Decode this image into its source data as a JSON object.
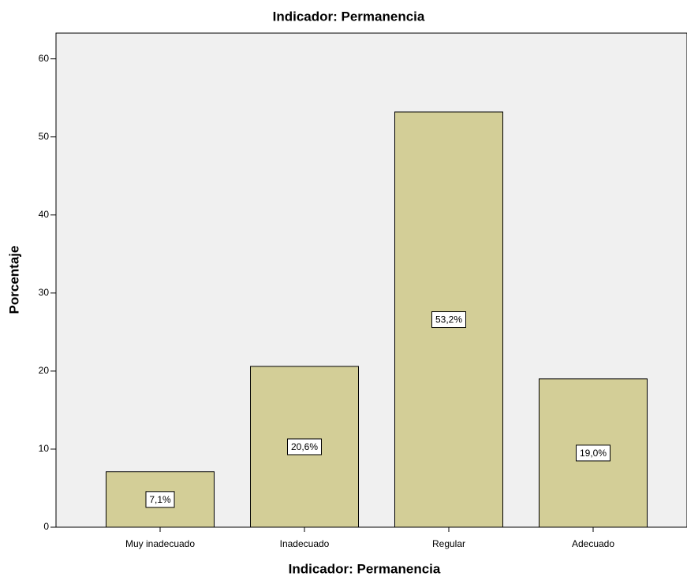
{
  "chart_data": {
    "type": "bar",
    "title": "Indicador: Permanencia",
    "x_label": "Indicador: Permanencia",
    "y_label": "Porcentaje",
    "categories": [
      "Muy inadecuado",
      "Inadecuado",
      "Regular",
      "Adecuado"
    ],
    "values": [
      7.1,
      20.6,
      53.2,
      19.0
    ],
    "value_labels": [
      "7,1%",
      "20,6%",
      "53,2%",
      "19,0%"
    ],
    "color": "#d3ce97",
    "ylim": [
      0,
      63.3
    ],
    "yticks": [
      0,
      10,
      20,
      30,
      40,
      50,
      60
    ]
  }
}
